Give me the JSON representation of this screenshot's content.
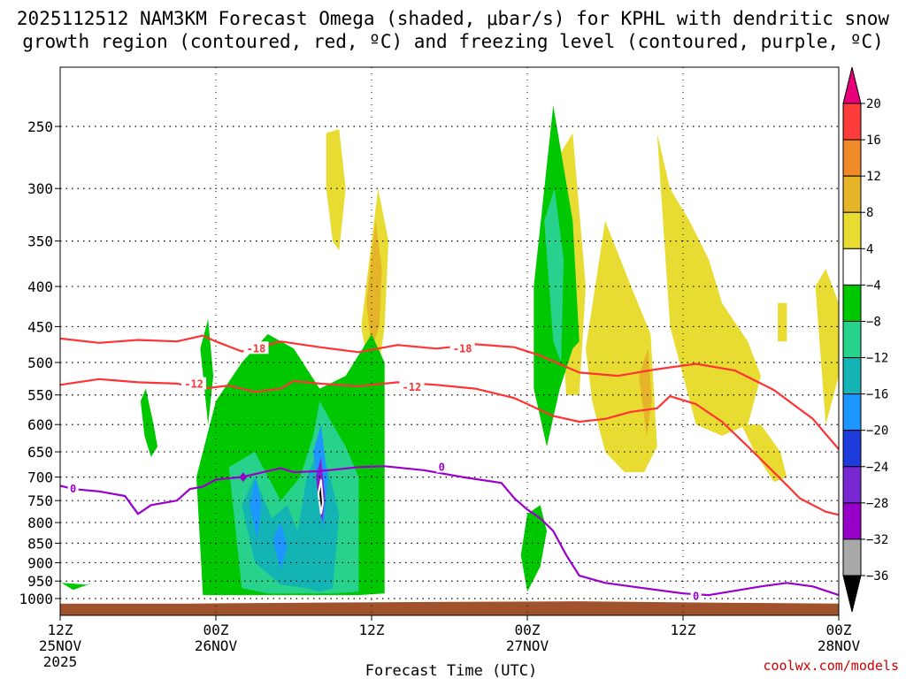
{
  "title": {
    "line1": "2025112512 NAM3KM Forecast Omega (shaded, μbar/s) for KPHL with dendritic snow",
    "line2": "growth region (contoured, red, ºC) and freezing level (contoured, purple, ºC)"
  },
  "watermark": "coolwx.com/models",
  "colors": {
    "dgz": "#ff3333",
    "freezing": "#9900cc",
    "ground": "#a0522d"
  },
  "chart_data": {
    "type": "heatmap",
    "title": "2025112512 NAM3KM Forecast Omega (shaded, μbar/s) for KPHL with dendritic snow growth region (contoured, red, ºC) and freezing level (contoured, purple, ºC)",
    "xlabel": "Forecast Time (UTC)",
    "ylabel": "",
    "xlim": [
      0,
      60
    ],
    "ylim": [
      1020,
      200
    ],
    "x_ticks": [
      {
        "h": 0,
        "l1": "12Z",
        "l2": "25NOV",
        "l3": "2025"
      },
      {
        "h": 12,
        "l1": "00Z",
        "l2": "26NOV",
        "l3": ""
      },
      {
        "h": 24,
        "l1": "12Z",
        "l2": "",
        "l3": ""
      },
      {
        "h": 36,
        "l1": "00Z",
        "l2": "27NOV",
        "l3": ""
      },
      {
        "h": 48,
        "l1": "12Z",
        "l2": "",
        "l3": ""
      },
      {
        "h": 60,
        "l1": "00Z",
        "l2": "28NOV",
        "l3": ""
      }
    ],
    "y_ticks": [
      250,
      300,
      350,
      400,
      450,
      500,
      550,
      600,
      650,
      700,
      750,
      800,
      850,
      900,
      950,
      1000
    ],
    "colorbar": {
      "levels": [
        "20",
        "16",
        "12",
        "8",
        "4",
        "−4",
        "−8",
        "−12",
        "−16",
        "−20",
        "−24",
        "−28",
        "−32",
        "−36"
      ],
      "colors": [
        "#e8007a",
        "#ff3c3c",
        "#f08a28",
        "#e6b428",
        "#e8dc32",
        "#ffffff",
        "#00c800",
        "#28d28c",
        "#14b4b4",
        "#1e96ff",
        "#1e3cdc",
        "#7828d2",
        "#9600c8",
        "#a8a8a8",
        "#000000"
      ]
    },
    "contours": {
      "dgz_m18": {
        "label": "-18",
        "x": [
          0,
          3,
          6,
          9,
          11,
          12,
          14,
          17,
          20,
          23,
          26,
          29,
          32,
          35,
          37,
          40,
          43,
          46,
          49,
          52,
          55,
          58,
          60
        ],
        "p": [
          466,
          472,
          468,
          470,
          462,
          470,
          484,
          470,
          478,
          485,
          475,
          480,
          474,
          478,
          490,
          515,
          520,
          510,
          502,
          512,
          542,
          590,
          645
        ]
      },
      "dgz_m12": {
        "label": "-12",
        "x": [
          0,
          3,
          6,
          9,
          11,
          13,
          15,
          17,
          18,
          20,
          23,
          26,
          29,
          32,
          35,
          38,
          40,
          42,
          44,
          46,
          47,
          49,
          51,
          53,
          55,
          57,
          59,
          60
        ],
        "p": [
          534,
          525,
          530,
          532,
          540,
          535,
          545,
          540,
          528,
          532,
          536,
          530,
          534,
          540,
          555,
          585,
          595,
          590,
          578,
          572,
          552,
          565,
          595,
          640,
          690,
          745,
          775,
          782
        ]
      },
      "freezing_0": {
        "label": "0",
        "x": [
          0,
          1,
          3,
          5,
          5.5,
          6,
          7,
          9,
          10,
          11,
          12,
          14,
          17,
          18,
          20,
          23,
          25,
          28,
          31,
          34,
          35,
          36,
          37,
          38,
          39,
          40,
          42,
          45,
          48,
          50,
          54,
          56,
          58,
          60
        ],
        "p": [
          718,
          725,
          730,
          740,
          760,
          780,
          760,
          750,
          725,
          720,
          705,
          700,
          682,
          690,
          688,
          680,
          678,
          686,
          700,
          712,
          745,
          770,
          790,
          820,
          880,
          935,
          955,
          970,
          985,
          990,
          965,
          955,
          965,
          990
        ]
      }
    },
    "contour_labels": [
      {
        "text": "-18",
        "x": 15.1,
        "p": 480
      },
      {
        "text": "-18",
        "x": 31.0,
        "p": 480
      },
      {
        "text": "-12",
        "x": 10.3,
        "p": 533
      },
      {
        "text": "-12",
        "x": 27.1,
        "p": 538
      },
      {
        "text": "0",
        "x": 1.0,
        "p": 725
      },
      {
        "text": "0",
        "x": 29.4,
        "p": 680
      },
      {
        "text": "0",
        "x": 49.0,
        "p": 993
      }
    ],
    "omega_regions": [
      {
        "v": 4,
        "x": [
          20.5,
          21.5,
          22,
          21.5,
          21,
          20.5
        ],
        "p": [
          255,
          252,
          300,
          360,
          350,
          300
        ]
      },
      {
        "v": 4,
        "x": [
          23.2,
          24.5,
          25.3,
          25.0,
          24.2,
          23.5,
          23.2
        ],
        "p": [
          450,
          300,
          350,
          450,
          560,
          480,
          450
        ]
      },
      {
        "v": 8,
        "x": [
          23.6,
          24.3,
          24.8,
          24.6,
          24.0,
          23.6
        ],
        "p": [
          420,
          330,
          380,
          450,
          480,
          420
        ]
      },
      {
        "v": 4,
        "x": [
          38.0,
          39.5,
          40.5,
          40.0,
          39.0,
          38.0
        ],
        "p": [
          280,
          255,
          400,
          550,
          550,
          280
        ]
      },
      {
        "v": 4,
        "x": [
          40.5,
          42,
          44,
          45.5,
          46,
          45.0,
          43.5,
          42,
          41,
          40.5
        ],
        "p": [
          480,
          330,
          400,
          460,
          640,
          690,
          690,
          650,
          560,
          480
        ]
      },
      {
        "v": 8,
        "x": [
          44.6,
          45.3,
          45.6,
          45.2,
          44.6
        ],
        "p": [
          520,
          480,
          560,
          620,
          520
        ]
      },
      {
        "v": 4,
        "x": [
          46,
          47,
          48.5,
          50,
          51,
          53,
          54,
          53,
          51,
          49,
          47,
          46
        ],
        "p": [
          255,
          300,
          330,
          370,
          420,
          470,
          520,
          600,
          620,
          600,
          450,
          255
        ]
      },
      {
        "v": 4,
        "x": [
          52.5,
          54,
          55.5,
          56,
          55,
          53.5,
          52.5
        ],
        "p": [
          600,
          600,
          650,
          700,
          710,
          650,
          600
        ]
      },
      {
        "v": 4,
        "x": [
          58.2,
          59,
          60,
          60,
          59,
          58.2
        ],
        "p": [
          400,
          380,
          420,
          520,
          600,
          400
        ]
      },
      {
        "v": 4,
        "x": [
          55.3,
          56,
          56,
          55.3
        ],
        "p": [
          420,
          420,
          470,
          470
        ]
      },
      {
        "v": -4,
        "x": [
          36.5,
          38,
          39.5,
          40,
          39.5,
          38.5,
          37.5,
          36.5,
          36.5
        ],
        "p": [
          400,
          235,
          330,
          470,
          480,
          540,
          640,
          540,
          400
        ]
      },
      {
        "v": -8,
        "x": [
          37.3,
          38.1,
          38.8,
          38.6,
          38.0,
          37.3
        ],
        "p": [
          330,
          300,
          370,
          500,
          470,
          330
        ]
      },
      {
        "v": -4,
        "x": [
          36,
          37,
          37.5,
          37.0,
          36,
          35.5,
          36
        ],
        "p": [
          780,
          760,
          820,
          910,
          980,
          880,
          780
        ]
      },
      {
        "v": -4,
        "x": [
          10.5,
          12,
          14,
          16,
          18,
          20,
          22,
          24,
          25,
          25,
          23,
          20,
          16,
          13,
          11,
          10.5
        ],
        "p": [
          700,
          560,
          500,
          460,
          480,
          540,
          520,
          460,
          500,
          985,
          990,
          990,
          990,
          990,
          990,
          700
        ]
      },
      {
        "v": -8,
        "x": [
          13,
          15,
          17,
          18.5,
          19.5,
          20,
          21,
          22,
          23,
          23,
          21,
          19,
          16,
          14,
          13
        ],
        "p": [
          680,
          650,
          750,
          700,
          620,
          560,
          600,
          640,
          700,
          980,
          985,
          985,
          985,
          970,
          680
        ]
      },
      {
        "v": -12,
        "x": [
          14,
          15,
          16.3,
          17.5,
          18.3,
          19,
          20,
          20.8,
          21.5,
          21,
          20,
          19,
          17,
          15,
          14
        ],
        "p": [
          760,
          700,
          790,
          760,
          820,
          700,
          640,
          700,
          780,
          970,
          980,
          970,
          960,
          900,
          760
        ]
      },
      {
        "v": -16,
        "x": [
          14.6,
          15.1,
          15.5,
          15.2,
          14.6
        ],
        "p": [
          760,
          700,
          760,
          840,
          760
        ]
      },
      {
        "v": -16,
        "x": [
          16.4,
          17,
          17.5,
          17,
          16.4
        ],
        "p": [
          840,
          800,
          860,
          920,
          840
        ]
      },
      {
        "v": -16,
        "x": [
          19.5,
          20.1,
          20.6,
          20.3,
          19.5
        ],
        "p": [
          650,
          600,
          700,
          820,
          650
        ]
      },
      {
        "v": -24,
        "x": [
          19.7,
          20.1,
          20.4,
          20.2,
          19.7
        ],
        "p": [
          700,
          660,
          740,
          800,
          700
        ]
      },
      {
        "v": -28,
        "x": [
          19.8,
          20.1,
          20.3,
          20.1,
          19.8
        ],
        "p": [
          720,
          690,
          760,
          790,
          720
        ]
      },
      {
        "v": -32,
        "x": [
          19.85,
          20.1,
          20.3,
          20.1,
          19.85
        ],
        "p": [
          730,
          700,
          760,
          785,
          730
        ]
      },
      {
        "v": -36,
        "x": [
          19.9,
          20.1,
          20.25,
          20.1,
          19.9
        ],
        "p": [
          735,
          705,
          755,
          780,
          735
        ]
      },
      {
        "v": -28,
        "x": [
          13.8,
          14.1,
          14.4,
          14.1,
          13.8
        ],
        "p": [
          700,
          690,
          700,
          710,
          700
        ]
      },
      {
        "v": -4,
        "x": [
          6.2,
          6.6,
          7.2,
          7.5,
          7.0,
          6.5,
          6.2
        ],
        "p": [
          560,
          540,
          600,
          640,
          660,
          620,
          560
        ]
      },
      {
        "v": -4,
        "x": [
          10.8,
          11.4,
          11.8,
          11.4,
          10.8
        ],
        "p": [
          480,
          440,
          520,
          600,
          480
        ]
      },
      {
        "v": -4,
        "x": [
          0.1,
          2,
          2.5,
          1,
          0.1
        ],
        "p": [
          955,
          960,
          955,
          975,
          955
        ]
      }
    ],
    "ground_pressure": [
      1015,
      1015,
      1012,
      1010,
      1008,
      1012,
      1015
    ],
    "ground_x": [
      0,
      10,
      20,
      30,
      40,
      50,
      60
    ]
  }
}
